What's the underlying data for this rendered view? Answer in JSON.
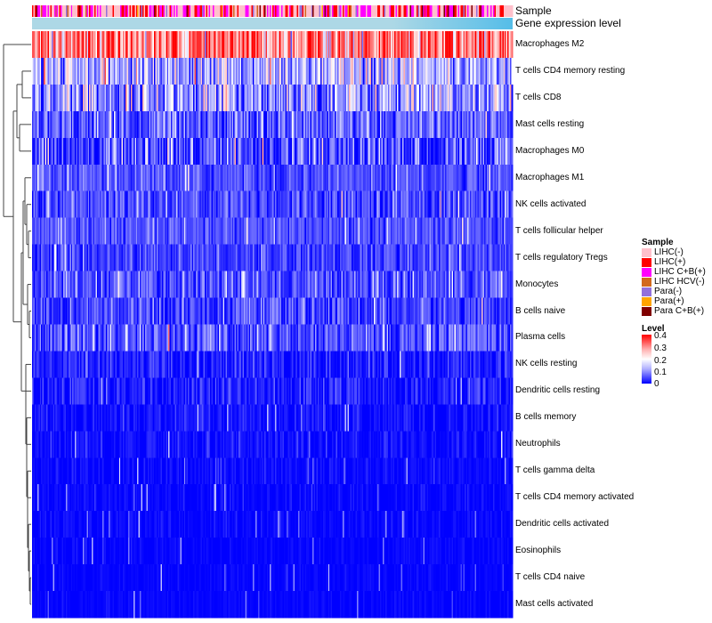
{
  "chart_data": {
    "type": "heatmap",
    "title": "",
    "annotations": [
      {
        "name": "Sample",
        "label": "Sample"
      },
      {
        "name": "Gene expression level",
        "label": "Gene expression level"
      }
    ],
    "rows": [
      {
        "label": "Macrophages M2",
        "mean": 0.3,
        "sd": 0.08
      },
      {
        "label": "T cells CD4 memory resting",
        "mean": 0.13,
        "sd": 0.07
      },
      {
        "label": "T cells CD8",
        "mean": 0.12,
        "sd": 0.07
      },
      {
        "label": "Mast cells resting",
        "mean": 0.07,
        "sd": 0.05
      },
      {
        "label": "Macrophages M0",
        "mean": 0.05,
        "sd": 0.07
      },
      {
        "label": "Macrophages M1",
        "mean": 0.06,
        "sd": 0.03
      },
      {
        "label": "NK cells activated",
        "mean": 0.06,
        "sd": 0.04
      },
      {
        "label": "T cells follicular helper",
        "mean": 0.06,
        "sd": 0.03
      },
      {
        "label": "T cells regulatory  Tregs",
        "mean": 0.05,
        "sd": 0.03
      },
      {
        "label": "Monocytes",
        "mean": 0.06,
        "sd": 0.04
      },
      {
        "label": "B cells naive",
        "mean": 0.05,
        "sd": 0.04
      },
      {
        "label": "Plasma cells",
        "mean": 0.06,
        "sd": 0.05
      },
      {
        "label": "NK cells resting",
        "mean": 0.02,
        "sd": 0.03
      },
      {
        "label": "Dendritic cells resting",
        "mean": 0.02,
        "sd": 0.03
      },
      {
        "label": "B cells memory",
        "mean": 0.01,
        "sd": 0.02
      },
      {
        "label": "Neutrophils",
        "mean": 0.01,
        "sd": 0.02
      },
      {
        "label": "T cells gamma delta",
        "mean": 0.005,
        "sd": 0.015
      },
      {
        "label": "T cells CD4 memory activated",
        "mean": 0.004,
        "sd": 0.012
      },
      {
        "label": "Dendritic cells activated",
        "mean": 0.004,
        "sd": 0.012
      },
      {
        "label": "Eosinophils",
        "mean": 0.002,
        "sd": 0.008
      },
      {
        "label": "T cells CD4 naive",
        "mean": 0.002,
        "sd": 0.008
      },
      {
        "label": "Mast cells activated",
        "mean": 0.002,
        "sd": 0.008
      }
    ],
    "n_samples": 370,
    "legend": {
      "sample": {
        "title": "Sample",
        "items": [
          {
            "label": "LIHC(-)",
            "color": "#FFC0CB"
          },
          {
            "label": "LIHC(+)",
            "color": "#FF0000"
          },
          {
            "label": "LIHC C+B(+)",
            "color": "#FF00FF"
          },
          {
            "label": "LIHC HCV(-)",
            "color": "#D2691E"
          },
          {
            "label": "Para(-)",
            "color": "#9370DB"
          },
          {
            "label": "Para(+)",
            "color": "#FFA500"
          },
          {
            "label": "Para C+B(+)",
            "color": "#800000"
          }
        ]
      },
      "level": {
        "title": "Level",
        "ticks": [
          "0.4",
          "0.3",
          "0.2",
          "0.1",
          "0"
        ],
        "range": [
          0,
          0.4
        ],
        "colors": {
          "low": "#0000FF",
          "mid": "#FFFFFF",
          "high": "#FF0000"
        }
      }
    },
    "expression_colors": {
      "low": "#ADD8E6",
      "high": "#55BDE8"
    }
  }
}
